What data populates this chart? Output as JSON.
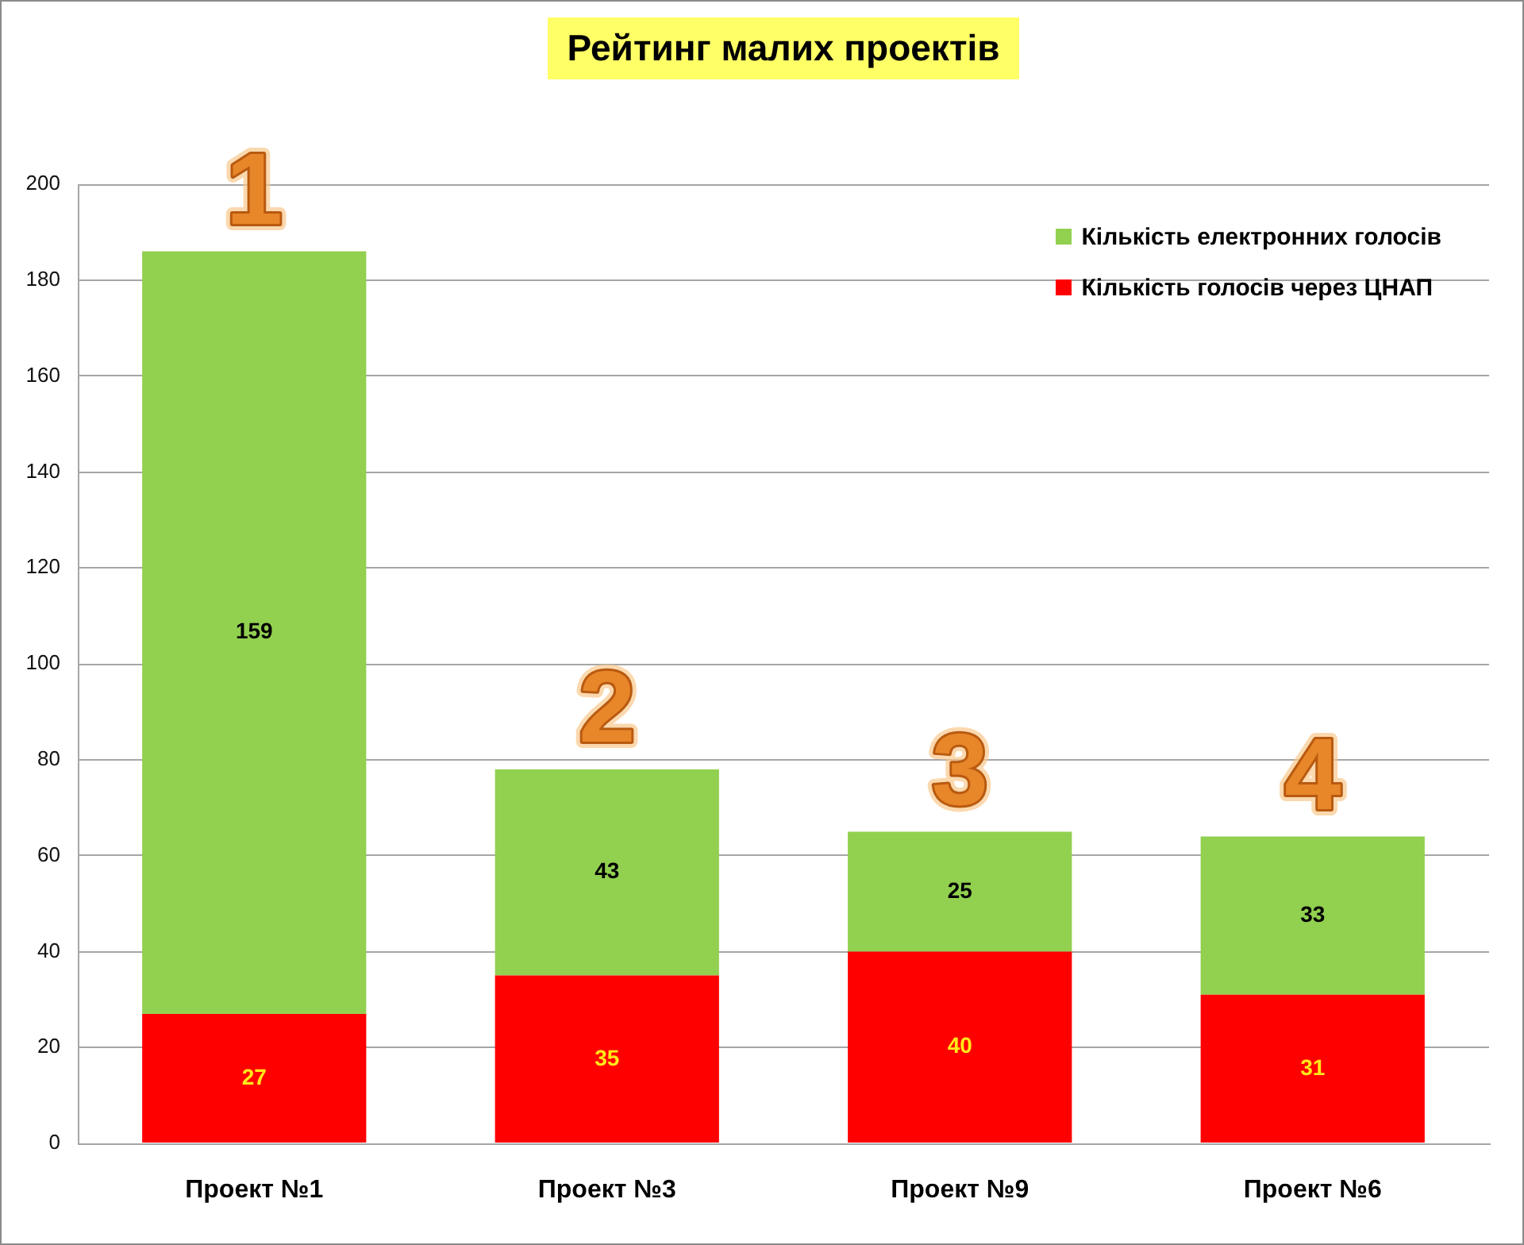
{
  "chart_data": {
    "type": "bar",
    "title": "Рейтинг малих проектів",
    "categories": [
      "Проект №1",
      "Проект №3",
      "Проект №9",
      "Проект №6"
    ],
    "series": [
      {
        "name": "Кількість голосів через ЦНАП",
        "color": "#ff0000",
        "values": [
          27,
          35,
          40,
          31
        ]
      },
      {
        "name": "Кількість електронних голосів",
        "color": "#92d050",
        "values": [
          159,
          43,
          25,
          33
        ]
      }
    ],
    "stacked": true,
    "ylim": [
      0,
      200
    ],
    "yticks": [
      0,
      20,
      40,
      60,
      80,
      100,
      120,
      140,
      160,
      180,
      200
    ],
    "grid": "y",
    "legend": "top right",
    "data_labels": true,
    "annotations": [
      "1",
      "2",
      "3",
      "4"
    ]
  }
}
